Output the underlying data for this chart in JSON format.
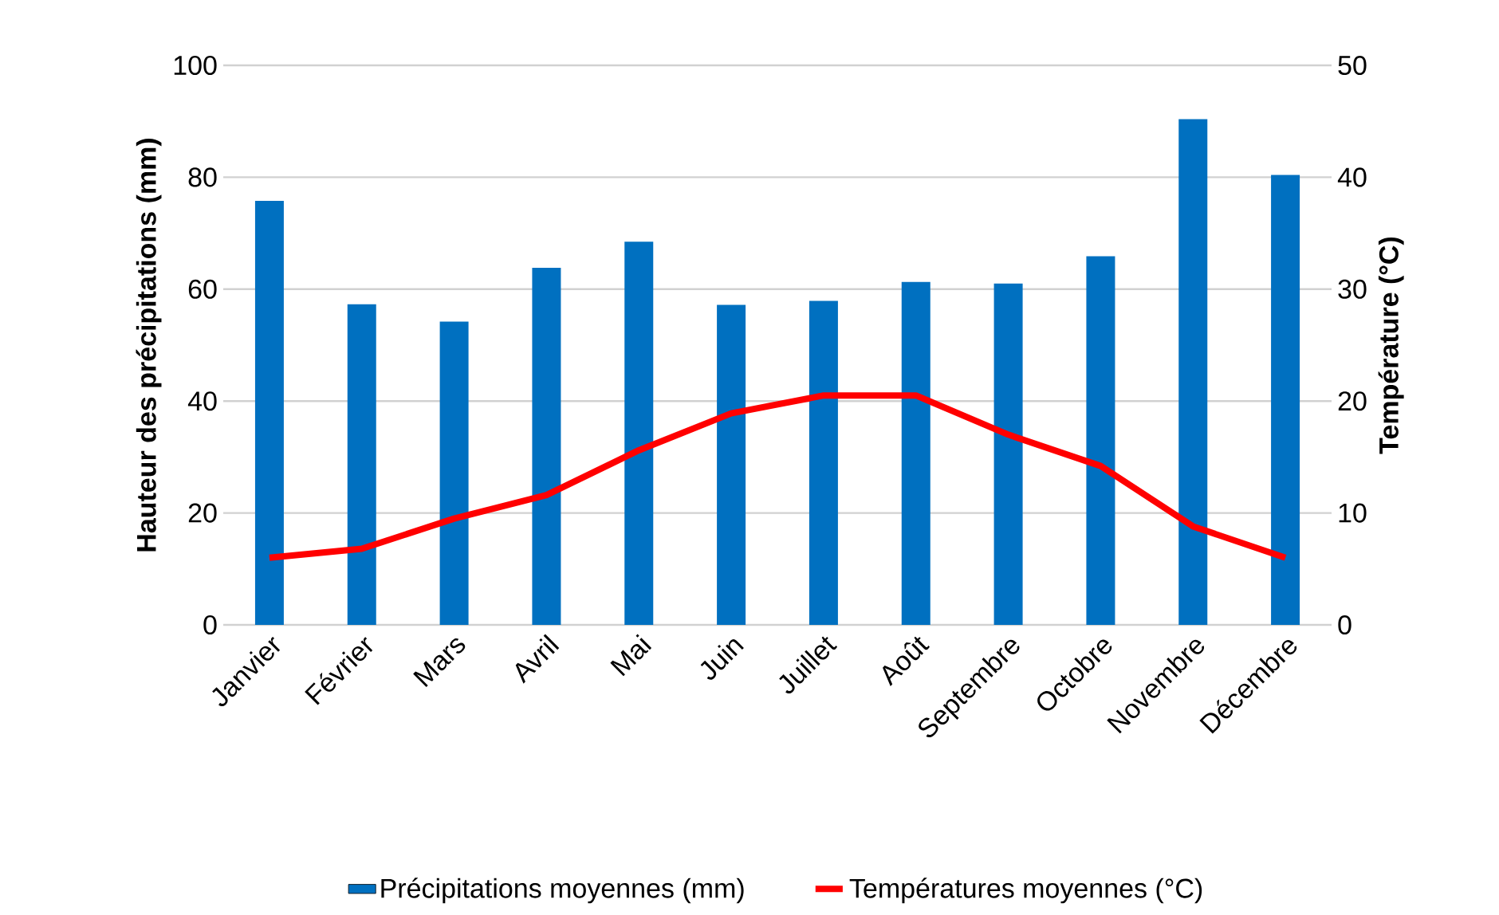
{
  "chart_data": {
    "type": "bar",
    "categories": [
      "Janvier",
      "Février",
      "Mars",
      "Avril",
      "Mai",
      "Juin",
      "Juillet",
      "Août",
      "Septembre",
      "Octobre",
      "Novembre",
      "Décembre"
    ],
    "series": [
      {
        "name": "Précipitations moyennes (mm)",
        "color": "#0070c0",
        "values": [
          75.8,
          57.3,
          54.2,
          63.8,
          68.5,
          57.2,
          57.9,
          61.3,
          61.0,
          65.9,
          90.4,
          80.4
        ]
      },
      {
        "name": "Températures moyennes (°C)",
        "type": "line",
        "axis": "y2",
        "color": "#ff0000",
        "values": [
          6.0,
          6.8,
          9.5,
          11.6,
          15.6,
          18.9,
          20.5,
          20.5,
          17.0,
          14.2,
          8.8,
          6.0
        ]
      }
    ],
    "ylabel": "Hauteur des précipitations (mm)",
    "y2label": "Température (°C)",
    "ylim": [
      0,
      100
    ],
    "yticks": [
      0,
      20,
      40,
      60,
      80,
      100
    ],
    "y2lim": [
      0,
      50
    ],
    "y2ticks": [
      0,
      10,
      20,
      30,
      40,
      50
    ],
    "grid": "y",
    "legend": "bottom"
  }
}
